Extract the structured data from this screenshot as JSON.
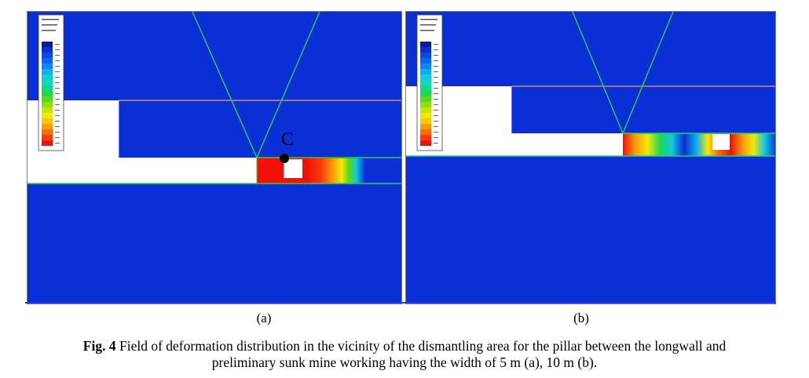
{
  "figure": {
    "panel_a_label": "(a)",
    "panel_b_label": "(b)",
    "point_label": "C",
    "caption_prefix": "Fig. 4",
    "caption_line1": " Field of deformation distribution in the vicinity of the dismantling area for the pillar between the longwall and",
    "caption_line2": "preliminary sunk mine working having the width of 5 m (a), 10 m (b)."
  },
  "colors": {
    "background_field": "#0b2fd6",
    "opening": "#ffffff",
    "seam_line": "#2bd24a",
    "roof_line": "#f0a24a",
    "high_deformation": "#ff1a10"
  },
  "legend_colormap": [
    "#0a1c9a",
    "#0b2fd6",
    "#0a48e8",
    "#0a66f0",
    "#0c88f4",
    "#10aef2",
    "#12c9e2",
    "#12d8b8",
    "#14d888",
    "#20d850",
    "#5ada18",
    "#92e010",
    "#c8e40a",
    "#f2e80a",
    "#f8c80a",
    "#fa9c0a",
    "#fa6e0a",
    "#f83a0c",
    "#f21008"
  ]
}
